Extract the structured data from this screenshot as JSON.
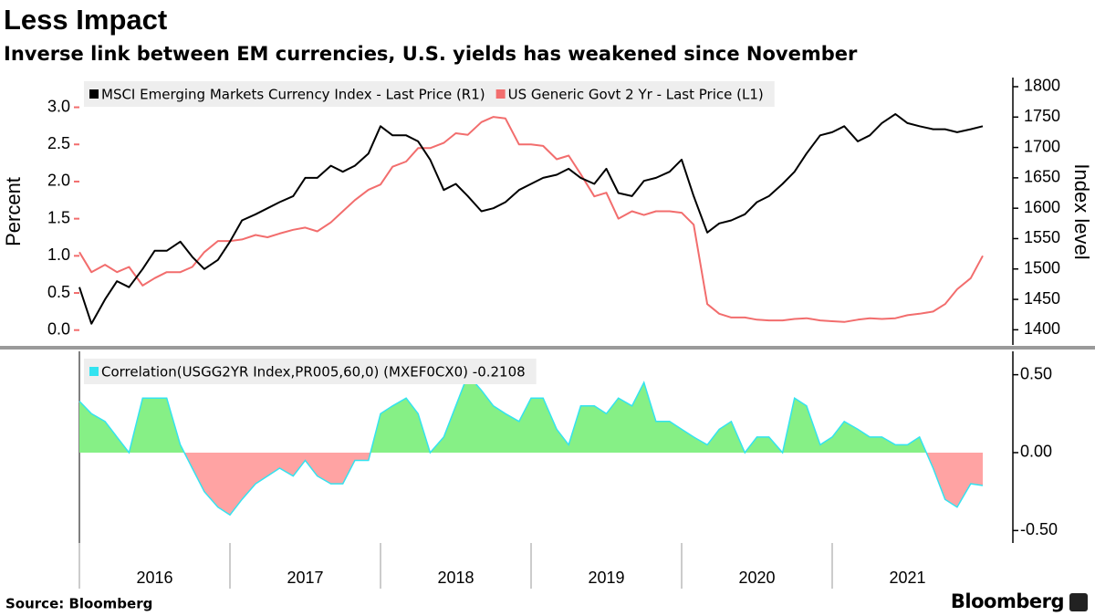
{
  "chart_data": [
    {
      "type": "line",
      "title": "Less Impact",
      "subtitle": "Inverse link between EM currencies, U.S. yields has weakened since November",
      "ylabel": "Percent",
      "y2label": "Index level",
      "source": "Source: Bloomberg",
      "brand": "Bloomberg",
      "legend": "top-left",
      "xlim": [
        2016,
        2022.2
      ],
      "ylim": [
        -0.2,
        3.4
      ],
      "yticks": [
        {
          "value": 0,
          "label": "0.0"
        },
        0.5,
        {
          "value": 1,
          "label": "1.0"
        },
        1.5,
        {
          "value": 2,
          "label": "2.0"
        },
        2.5,
        {
          "value": 3,
          "label": "3.0"
        }
      ],
      "y2lim": [
        1375,
        1815
      ],
      "y2ticks": [
        1400,
        1450,
        1500,
        1550,
        1600,
        1650,
        1700,
        1750,
        1800
      ],
      "x": [
        2016,
        2016.08,
        2016.17,
        2016.25,
        2016.33,
        2016.42,
        2016.5,
        2016.58,
        2016.67,
        2016.75,
        2016.83,
        2016.92,
        2017,
        2017.08,
        2017.17,
        2017.25,
        2017.33,
        2017.42,
        2017.5,
        2017.58,
        2017.67,
        2017.75,
        2017.83,
        2017.92,
        2018,
        2018.08,
        2018.17,
        2018.25,
        2018.33,
        2018.42,
        2018.5,
        2018.58,
        2018.67,
        2018.75,
        2018.83,
        2018.92,
        2019,
        2019.08,
        2019.17,
        2019.25,
        2019.33,
        2019.42,
        2019.5,
        2019.58,
        2019.67,
        2019.75,
        2019.83,
        2019.92,
        2020,
        2020.08,
        2020.17,
        2020.25,
        2020.33,
        2020.42,
        2020.5,
        2020.58,
        2020.67,
        2020.75,
        2020.83,
        2020.92,
        2021,
        2021.08,
        2021.17,
        2021.25,
        2021.33,
        2021.42,
        2021.5,
        2021.58,
        2021.67,
        2021.75,
        2021.83,
        2021.92,
        2022
      ],
      "series": [
        {
          "name": "MSCI Emerging Markets Currency Index - Last Price (R1)",
          "color": "#000000",
          "axis": "y2",
          "values": [
            1470,
            1410,
            1450,
            1480,
            1470,
            1500,
            1530,
            1530,
            1545,
            1520,
            1500,
            1515,
            1545,
            1580,
            1590,
            1600,
            1610,
            1620,
            1650,
            1650,
            1670,
            1660,
            1670,
            1690,
            1735,
            1720,
            1720,
            1710,
            1680,
            1630,
            1640,
            1620,
            1595,
            1600,
            1610,
            1630,
            1640,
            1650,
            1655,
            1665,
            1650,
            1640,
            1665,
            1625,
            1620,
            1645,
            1650,
            1660,
            1680,
            1620,
            1560,
            1575,
            1580,
            1590,
            1610,
            1620,
            1640,
            1660,
            1690,
            1720,
            1725,
            1735,
            1710,
            1720,
            1740,
            1755,
            1740,
            1735,
            1730,
            1730,
            1725,
            1730,
            1735
          ]
        },
        {
          "name": "US Generic Govt 2 Yr - Last Price (L1)",
          "color": "#f26d6d",
          "values": [
            1.05,
            0.78,
            0.88,
            0.78,
            0.85,
            0.6,
            0.7,
            0.78,
            0.78,
            0.85,
            1.05,
            1.2,
            1.2,
            1.22,
            1.28,
            1.25,
            1.3,
            1.35,
            1.38,
            1.33,
            1.45,
            1.6,
            1.75,
            1.89,
            1.96,
            2.2,
            2.27,
            2.45,
            2.45,
            2.52,
            2.65,
            2.63,
            2.8,
            2.87,
            2.85,
            2.5,
            2.5,
            2.48,
            2.3,
            2.35,
            2.1,
            1.8,
            1.85,
            1.5,
            1.6,
            1.55,
            1.6,
            1.6,
            1.58,
            1.42,
            0.35,
            0.22,
            0.17,
            0.17,
            0.14,
            0.13,
            0.13,
            0.15,
            0.16,
            0.13,
            0.12,
            0.11,
            0.14,
            0.16,
            0.15,
            0.16,
            0.2,
            0.22,
            0.25,
            0.35,
            0.55,
            0.7,
            1.0
          ]
        }
      ]
    },
    {
      "type": "area",
      "xlim": [
        2016,
        2022.2
      ],
      "xticks": [
        2016,
        2017,
        2018,
        2019,
        2020,
        2021
      ],
      "ylim": [
        -0.58,
        0.65
      ],
      "yticks": [
        {
          "value": 0.5,
          "label": "0.50"
        },
        {
          "value": 0,
          "label": "0.00"
        },
        {
          "value": -0.5,
          "label": "-0.50"
        }
      ],
      "positive_color": "#86f086",
      "negative_color": "#ffa3a3",
      "x": [
        2016,
        2016.08,
        2016.17,
        2016.25,
        2016.33,
        2016.42,
        2016.5,
        2016.58,
        2016.67,
        2016.75,
        2016.83,
        2016.92,
        2017,
        2017.08,
        2017.17,
        2017.25,
        2017.33,
        2017.42,
        2017.5,
        2017.58,
        2017.67,
        2017.75,
        2017.83,
        2017.92,
        2018,
        2018.08,
        2018.17,
        2018.25,
        2018.33,
        2018.42,
        2018.5,
        2018.58,
        2018.67,
        2018.75,
        2018.83,
        2018.92,
        2019,
        2019.08,
        2019.17,
        2019.25,
        2019.33,
        2019.42,
        2019.5,
        2019.58,
        2019.67,
        2019.75,
        2019.83,
        2019.92,
        2020,
        2020.08,
        2020.17,
        2020.25,
        2020.33,
        2020.42,
        2020.5,
        2020.58,
        2020.67,
        2020.75,
        2020.83,
        2020.92,
        2021,
        2021.08,
        2021.17,
        2021.25,
        2021.33,
        2021.42,
        2021.5,
        2021.58,
        2021.67,
        2021.75,
        2021.83,
        2021.92,
        2022
      ],
      "series": [
        {
          "name": "Correlation(USGG2YR Index,PR005,60,0) (MXEF0CX0) -0.2108",
          "color": "#33e3f0",
          "values": [
            0.33,
            0.25,
            0.2,
            0.1,
            0.0,
            0.35,
            0.35,
            0.35,
            0.05,
            -0.1,
            -0.25,
            -0.35,
            -0.4,
            -0.3,
            -0.2,
            -0.15,
            -0.1,
            -0.15,
            -0.05,
            -0.15,
            -0.2,
            -0.2,
            -0.05,
            -0.05,
            0.25,
            0.3,
            0.35,
            0.25,
            0.0,
            0.1,
            0.3,
            0.5,
            0.4,
            0.3,
            0.25,
            0.2,
            0.35,
            0.35,
            0.15,
            0.05,
            0.3,
            0.3,
            0.25,
            0.35,
            0.3,
            0.45,
            0.2,
            0.2,
            0.15,
            0.1,
            0.05,
            0.15,
            0.2,
            0.0,
            0.1,
            0.1,
            0.0,
            0.35,
            0.3,
            0.05,
            0.1,
            0.2,
            0.15,
            0.1,
            0.1,
            0.05,
            0.05,
            0.1,
            -0.1,
            -0.3,
            -0.35,
            -0.2,
            -0.2108
          ]
        }
      ]
    }
  ]
}
